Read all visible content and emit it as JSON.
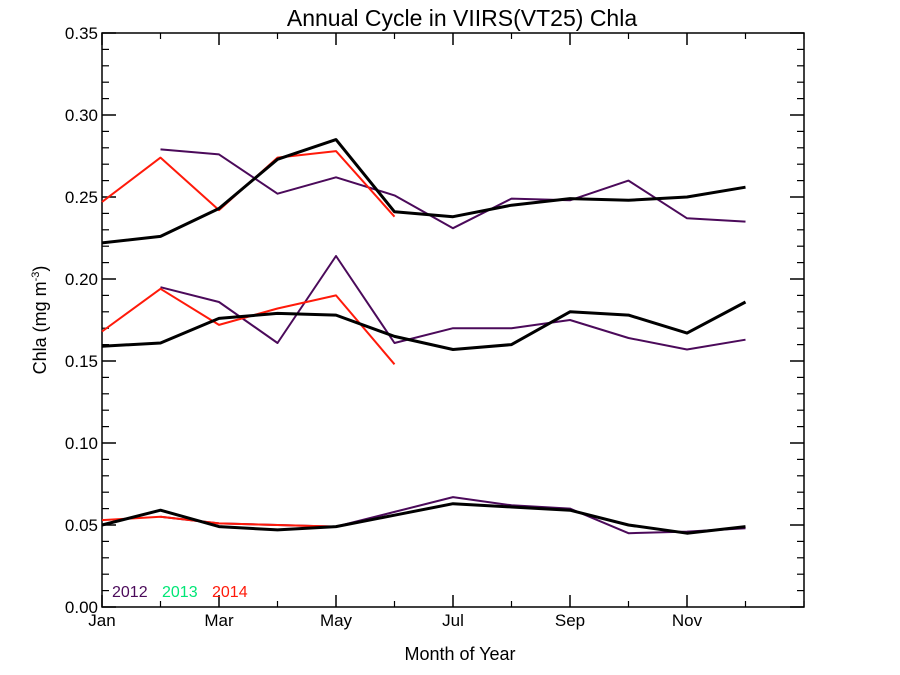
{
  "chart_data": {
    "type": "line",
    "title": "Annual Cycle in VIIRS(VT25) Chla",
    "xlabel": "Month of Year",
    "ylabel_main": "Chla (mg m",
    "ylabel_sup": "-3",
    "ylabel_close": ")",
    "xlim": [
      1,
      13
    ],
    "ylim": [
      0,
      0.35
    ],
    "x_ticks": [
      {
        "value": 1,
        "label": "Jan"
      },
      {
        "value": 3,
        "label": "Mar"
      },
      {
        "value": 5,
        "label": "May"
      },
      {
        "value": 7,
        "label": "Jul"
      },
      {
        "value": 9,
        "label": "Sep"
      },
      {
        "value": 11,
        "label": "Nov"
      }
    ],
    "y_ticks": [
      {
        "value": 0.0,
        "label": "0.00"
      },
      {
        "value": 0.05,
        "label": "0.05"
      },
      {
        "value": 0.1,
        "label": "0.10"
      },
      {
        "value": 0.15,
        "label": "0.15"
      },
      {
        "value": 0.2,
        "label": "0.20"
      },
      {
        "value": 0.25,
        "label": "0.25"
      },
      {
        "value": 0.3,
        "label": "0.30"
      },
      {
        "value": 0.35,
        "label": "0.35"
      }
    ],
    "legend": [
      {
        "label": "2012",
        "color": "#4b0a5a"
      },
      {
        "label": "2013",
        "color": "#00e676"
      },
      {
        "label": "2014",
        "color": "#ff1a0a"
      }
    ],
    "legend_placement": "bottom-left",
    "series": [
      {
        "group": "upper",
        "year": "2012",
        "color": "#4b0a5a",
        "width": 2,
        "x": [
          2,
          3,
          4,
          5,
          6,
          7,
          8,
          9,
          10,
          11,
          12
        ],
        "y": [
          0.279,
          0.276,
          0.252,
          0.262,
          0.251,
          0.231,
          0.249,
          0.248,
          0.26,
          0.237,
          0.235
        ]
      },
      {
        "group": "upper",
        "year": "2014",
        "color": "#ff1a0a",
        "width": 2,
        "x": [
          1,
          2,
          3,
          4,
          5,
          6
        ],
        "y": [
          0.247,
          0.274,
          0.242,
          0.274,
          0.278,
          0.238
        ]
      },
      {
        "group": "upper",
        "year": "mean",
        "color": "#000000",
        "width": 3,
        "x": [
          1,
          2,
          3,
          4,
          5,
          6,
          7,
          8,
          9,
          10,
          11,
          12
        ],
        "y": [
          0.222,
          0.226,
          0.243,
          0.273,
          0.285,
          0.241,
          0.238,
          0.245,
          0.249,
          0.248,
          0.25,
          0.256
        ]
      },
      {
        "group": "middle",
        "year": "2012",
        "color": "#4b0a5a",
        "width": 2,
        "x": [
          2,
          3,
          4,
          5,
          6,
          7,
          8,
          9,
          10,
          11,
          12
        ],
        "y": [
          0.195,
          0.186,
          0.161,
          0.214,
          0.161,
          0.17,
          0.17,
          0.175,
          0.164,
          0.157,
          0.163
        ]
      },
      {
        "group": "middle",
        "year": "2014",
        "color": "#ff1a0a",
        "width": 2,
        "x": [
          1,
          2,
          3,
          4,
          5,
          6
        ],
        "y": [
          0.168,
          0.194,
          0.172,
          0.182,
          0.19,
          0.148
        ]
      },
      {
        "group": "middle",
        "year": "mean",
        "color": "#000000",
        "width": 3,
        "x": [
          1,
          2,
          3,
          4,
          5,
          6,
          7,
          8,
          9,
          10,
          11,
          12
        ],
        "y": [
          0.159,
          0.161,
          0.176,
          0.179,
          0.178,
          0.165,
          0.157,
          0.16,
          0.18,
          0.178,
          0.167,
          0.186
        ]
      },
      {
        "group": "lower",
        "year": "2012",
        "color": "#4b0a5a",
        "width": 2,
        "x": [
          2,
          3,
          4,
          5,
          6,
          7,
          8,
          9,
          10,
          11,
          12
        ],
        "y": [
          0.055,
          0.051,
          0.05,
          0.049,
          0.058,
          0.067,
          0.062,
          0.06,
          0.045,
          0.046,
          0.048
        ]
      },
      {
        "group": "lower",
        "year": "2014",
        "color": "#ff1a0a",
        "width": 2,
        "x": [
          1,
          2,
          3,
          4,
          5
        ],
        "y": [
          0.053,
          0.055,
          0.051,
          0.05,
          0.049
        ]
      },
      {
        "group": "lower",
        "year": "mean",
        "color": "#000000",
        "width": 3,
        "x": [
          1,
          2,
          3,
          4,
          5,
          6,
          7,
          8,
          9,
          10,
          11,
          12
        ],
        "y": [
          0.05,
          0.059,
          0.049,
          0.047,
          0.049,
          0.056,
          0.063,
          0.061,
          0.059,
          0.05,
          0.045,
          0.049
        ]
      }
    ]
  }
}
